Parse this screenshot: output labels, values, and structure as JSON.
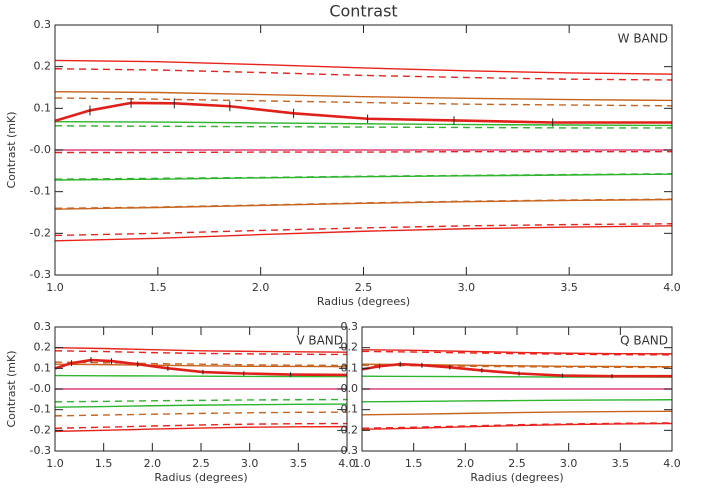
{
  "chart_data": [
    {
      "type": "line",
      "title": "Contrast",
      "xlabel": "Radius (degrees)",
      "ylabel": "Contrast (mK)",
      "annotation": "W BAND",
      "xlim": [
        1,
        4
      ],
      "ylim": [
        -0.3,
        0.3
      ],
      "xticks": [
        {
          "value": 1,
          "label": "1.0"
        },
        {
          "value": 1.5,
          "label": "1.5"
        },
        {
          "value": 2,
          "label": "2.0"
        },
        {
          "value": 2.5,
          "label": "2.5"
        },
        {
          "value": 3,
          "label": "3.0"
        },
        {
          "value": 3.5,
          "label": "3.5"
        },
        {
          "value": 4,
          "label": "4.0"
        }
      ],
      "yticks": [
        -0.3,
        -0.2,
        -0.1,
        {
          "value": 0,
          "label": "-0.0"
        },
        0.1,
        0.2,
        0.3
      ],
      "x": [
        1,
        1.5,
        2,
        2.5,
        3,
        3.5,
        4
      ],
      "series": [
        {
          "color": "#e8231c",
          "dash": false,
          "values": [
            0.215,
            0.212,
            0.205,
            0.197,
            0.19,
            0.185,
            0.182
          ]
        },
        {
          "color": "#e8231c",
          "dash": true,
          "values": [
            0.195,
            0.192,
            0.186,
            0.179,
            0.174,
            0.17,
            0.168
          ]
        },
        {
          "color": "#c8641e",
          "dash": false,
          "values": [
            0.14,
            0.138,
            0.133,
            0.128,
            0.124,
            0.121,
            0.119
          ]
        },
        {
          "color": "#c8641e",
          "dash": true,
          "values": [
            0.125,
            0.122,
            0.118,
            0.114,
            0.11,
            0.108,
            0.106
          ]
        },
        {
          "color": "#2db52d",
          "dash": false,
          "values": [
            0.068,
            0.067,
            0.065,
            0.063,
            0.061,
            0.06,
            0.059
          ]
        },
        {
          "color": "#2db52d",
          "dash": true,
          "values": [
            0.058,
            0.057,
            0.056,
            0.055,
            0.054,
            0.053,
            0.053
          ]
        },
        {
          "color": "#e0407a",
          "dash": false,
          "values": [
            0,
            0,
            0,
            0,
            0,
            0,
            0
          ]
        },
        {
          "color": "#e8231c",
          "dash": true,
          "values": [
            -0.006,
            -0.006,
            -0.005,
            -0.005,
            -0.004,
            -0.004,
            -0.004
          ]
        },
        {
          "color": "#2db52d",
          "dash": false,
          "values": [
            -0.072,
            -0.07,
            -0.067,
            -0.064,
            -0.062,
            -0.06,
            -0.058
          ]
        },
        {
          "color": "#2db52d",
          "dash": true,
          "values": [
            -0.07,
            -0.068,
            -0.066,
            -0.063,
            -0.061,
            -0.059,
            -0.057
          ]
        },
        {
          "color": "#c8641e",
          "dash": false,
          "values": [
            -0.142,
            -0.138,
            -0.133,
            -0.128,
            -0.124,
            -0.121,
            -0.119
          ]
        },
        {
          "color": "#c8641e",
          "dash": true,
          "values": [
            -0.14,
            -0.137,
            -0.132,
            -0.127,
            -0.123,
            -0.12,
            -0.118
          ]
        },
        {
          "color": "#e8231c",
          "dash": true,
          "values": [
            -0.205,
            -0.2,
            -0.193,
            -0.187,
            -0.182,
            -0.179,
            -0.177
          ]
        },
        {
          "color": "#e8231c",
          "dash": false,
          "values": [
            -0.218,
            -0.212,
            -0.203,
            -0.195,
            -0.189,
            -0.185,
            -0.182
          ]
        },
        {
          "color": "#e0201a",
          "dash": false,
          "x": [
            1,
            1.17,
            1.37,
            1.58,
            1.85,
            2.16,
            2.52,
            2.94,
            3.42,
            4
          ],
          "values": [
            0.07,
            0.095,
            0.113,
            0.112,
            0.105,
            0.088,
            0.075,
            0.071,
            0.066,
            0.066
          ],
          "errors": [
            0,
            0.012,
            0.012,
            0.012,
            0.012,
            0.011,
            0.01,
            0.01,
            0.01,
            0
          ]
        }
      ]
    },
    {
      "type": "line",
      "xlabel": "Radius (degrees)",
      "ylabel": "Contrast (mK)",
      "annotation": "V BAND",
      "xlim": [
        1,
        4
      ],
      "ylim": [
        -0.3,
        0.3
      ],
      "xticks": [
        {
          "value": 1,
          "label": "1.0"
        },
        {
          "value": 1.5,
          "label": "1.5"
        },
        {
          "value": 2,
          "label": "2.0"
        },
        {
          "value": 2.5,
          "label": "2.5"
        },
        {
          "value": 3,
          "label": "3.0"
        },
        {
          "value": 3.5,
          "label": "3.5"
        },
        {
          "value": 4,
          "label": "4.0"
        }
      ],
      "yticks": [
        -0.3,
        -0.2,
        -0.1,
        {
          "value": 0,
          "label": "-0.0"
        },
        0.1,
        0.2,
        0.3
      ],
      "x": [
        1,
        1.5,
        2,
        2.5,
        3,
        3.5,
        4
      ],
      "series": [
        {
          "color": "#e8231c",
          "dash": false,
          "values": [
            0.2,
            0.196,
            0.19,
            0.185,
            0.182,
            0.18,
            0.178
          ]
        },
        {
          "color": "#e8231c",
          "dash": true,
          "values": [
            0.185,
            0.181,
            0.176,
            0.172,
            0.17,
            0.168,
            0.167
          ]
        },
        {
          "color": "#c8641e",
          "dash": true,
          "values": [
            0.13,
            0.127,
            0.123,
            0.12,
            0.117,
            0.115,
            0.114
          ]
        },
        {
          "color": "#c8641e",
          "dash": false,
          "values": [
            0.12,
            0.118,
            0.115,
            0.112,
            0.11,
            0.109,
            0.108
          ]
        },
        {
          "color": "#2db52d",
          "dash": false,
          "values": [
            0.065,
            0.064,
            0.063,
            0.062,
            0.061,
            0.06,
            0.06
          ]
        },
        {
          "color": "#e0407a",
          "dash": false,
          "values": [
            0,
            0,
            0,
            0,
            0,
            0,
            0
          ]
        },
        {
          "color": "#2db52d",
          "dash": true,
          "values": [
            -0.062,
            -0.06,
            -0.057,
            -0.055,
            -0.053,
            -0.052,
            -0.051
          ]
        },
        {
          "color": "#2db52d",
          "dash": false,
          "values": [
            -0.088,
            -0.085,
            -0.081,
            -0.078,
            -0.076,
            -0.074,
            -0.073
          ]
        },
        {
          "color": "#c8641e",
          "dash": true,
          "values": [
            -0.13,
            -0.126,
            -0.122,
            -0.118,
            -0.115,
            -0.113,
            -0.112
          ]
        },
        {
          "color": "#e8231c",
          "dash": true,
          "values": [
            -0.19,
            -0.185,
            -0.179,
            -0.174,
            -0.17,
            -0.168,
            -0.167
          ]
        },
        {
          "color": "#e8231c",
          "dash": false,
          "values": [
            -0.205,
            -0.2,
            -0.194,
            -0.189,
            -0.185,
            -0.183,
            -0.182
          ]
        },
        {
          "color": "#e0201a",
          "dash": false,
          "x": [
            1,
            1.17,
            1.37,
            1.58,
            1.85,
            2.16,
            2.52,
            2.94,
            3.42,
            4
          ],
          "values": [
            0.1,
            0.125,
            0.14,
            0.135,
            0.12,
            0.1,
            0.082,
            0.075,
            0.07,
            0.068
          ],
          "errors": [
            0,
            0.014,
            0.014,
            0.014,
            0.013,
            0.012,
            0.011,
            0.011,
            0.011,
            0
          ]
        }
      ]
    },
    {
      "type": "line",
      "xlabel": "Radius (degrees)",
      "annotation": "Q BAND",
      "xlim": [
        1,
        4
      ],
      "ylim": [
        -0.3,
        0.3
      ],
      "xticks": [
        {
          "value": 1,
          "label": "1.0"
        },
        {
          "value": 1.5,
          "label": "1.5"
        },
        {
          "value": 2,
          "label": "2.0"
        },
        {
          "value": 2.5,
          "label": "2.5"
        },
        {
          "value": 3,
          "label": "3.0"
        },
        {
          "value": 3.5,
          "label": "3.5"
        },
        {
          "value": 4,
          "label": "4.0"
        }
      ],
      "yticks": [
        -0.3,
        -0.2,
        -0.1,
        {
          "value": 0,
          "label": "-0.0"
        },
        0.1,
        0.2,
        0.3
      ],
      "x": [
        1,
        1.5,
        2,
        2.5,
        3,
        3.5,
        4
      ],
      "series": [
        {
          "color": "#e8231c",
          "dash": false,
          "values": [
            0.19,
            0.187,
            0.182,
            0.177,
            0.173,
            0.171,
            0.17
          ]
        },
        {
          "color": "#e8231c",
          "dash": true,
          "values": [
            0.182,
            0.179,
            0.175,
            0.171,
            0.168,
            0.166,
            0.165
          ]
        },
        {
          "color": "#c8641e",
          "dash": false,
          "values": [
            0.12,
            0.118,
            0.115,
            0.112,
            0.11,
            0.109,
            0.108
          ]
        },
        {
          "color": "#c8641e",
          "dash": true,
          "values": [
            0.115,
            0.113,
            0.11,
            0.108,
            0.106,
            0.105,
            0.104
          ]
        },
        {
          "color": "#2db52d",
          "dash": false,
          "values": [
            0.062,
            0.061,
            0.06,
            0.059,
            0.058,
            0.058,
            0.057
          ]
        },
        {
          "color": "#e0407a",
          "dash": false,
          "values": [
            0,
            0,
            0,
            0,
            0,
            0,
            0
          ]
        },
        {
          "color": "#2db52d",
          "dash": false,
          "values": [
            -0.062,
            -0.06,
            -0.058,
            -0.056,
            -0.054,
            -0.053,
            -0.052
          ]
        },
        {
          "color": "#c8641e",
          "dash": false,
          "values": [
            -0.125,
            -0.122,
            -0.118,
            -0.114,
            -0.111,
            -0.109,
            -0.108
          ]
        },
        {
          "color": "#e8231c",
          "dash": true,
          "values": [
            -0.19,
            -0.185,
            -0.179,
            -0.173,
            -0.169,
            -0.166,
            -0.164
          ]
        },
        {
          "color": "#e8231c",
          "dash": false,
          "values": [
            -0.195,
            -0.19,
            -0.183,
            -0.177,
            -0.172,
            -0.169,
            -0.167
          ]
        },
        {
          "color": "#e0201a",
          "dash": false,
          "x": [
            1,
            1.17,
            1.37,
            1.58,
            1.85,
            2.16,
            2.52,
            2.94,
            3.42,
            4
          ],
          "values": [
            0.095,
            0.11,
            0.12,
            0.115,
            0.105,
            0.09,
            0.075,
            0.065,
            0.062,
            0.062
          ],
          "errors": [
            0,
            0.012,
            0.012,
            0.012,
            0.011,
            0.011,
            0.01,
            0.01,
            0.01,
            0
          ]
        }
      ]
    }
  ]
}
